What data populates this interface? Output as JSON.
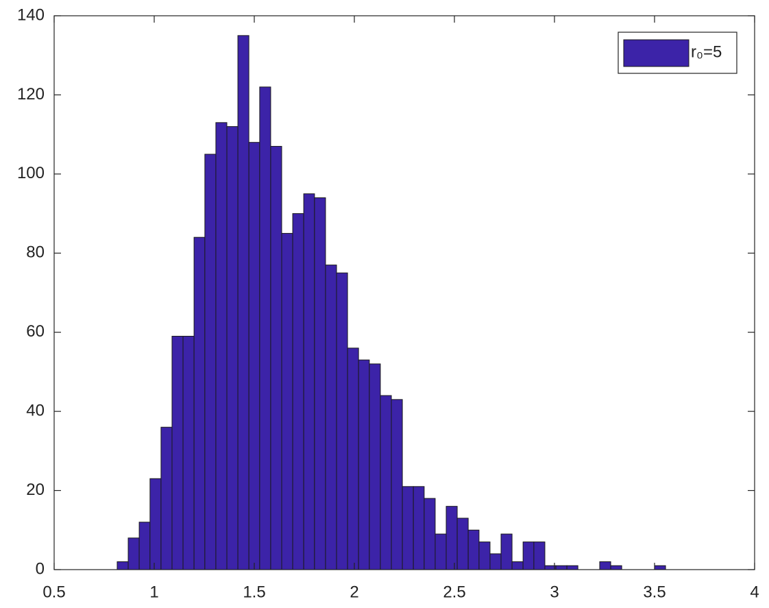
{
  "chart_data": {
    "type": "histogram",
    "bins": [
      0.815,
      0.87,
      0.925,
      0.979,
      1.034,
      1.089,
      1.144,
      1.199,
      1.253,
      1.308,
      1.363,
      1.418,
      1.473,
      1.527,
      1.582,
      1.637,
      1.692,
      1.747,
      1.801,
      1.856,
      1.911,
      1.966,
      2.021,
      2.075,
      2.13,
      2.185,
      2.24,
      2.295,
      2.349,
      2.404,
      2.459,
      2.514,
      2.569,
      2.623,
      2.678,
      2.733,
      2.788,
      2.843,
      2.897,
      2.952,
      3.007,
      3.062,
      3.117,
      3.171,
      3.226,
      3.281,
      3.336,
      3.391,
      3.445,
      3.5,
      3.555
    ],
    "series": [
      {
        "name": "r₀=5",
        "color": "#3c23a8",
        "values": [
          2,
          8,
          12,
          23,
          36,
          59,
          59,
          84,
          105,
          113,
          112,
          135,
          108,
          122,
          107,
          85,
          90,
          95,
          94,
          77,
          75,
          56,
          53,
          52,
          44,
          43,
          21,
          21,
          18,
          9,
          16,
          13,
          10,
          7,
          4,
          9,
          2,
          7,
          7,
          1,
          1,
          1,
          0,
          0,
          2,
          1,
          0,
          0,
          0,
          1
        ]
      }
    ],
    "xlim": [
      0.5,
      4
    ],
    "xticks": [
      0.5,
      1,
      1.5,
      2,
      2.5,
      3,
      3.5,
      4
    ],
    "ylim": [
      0,
      140
    ],
    "yticks": [
      0,
      20,
      40,
      60,
      80,
      100,
      120,
      140
    ],
    "grid": false,
    "legend": "upper right"
  }
}
